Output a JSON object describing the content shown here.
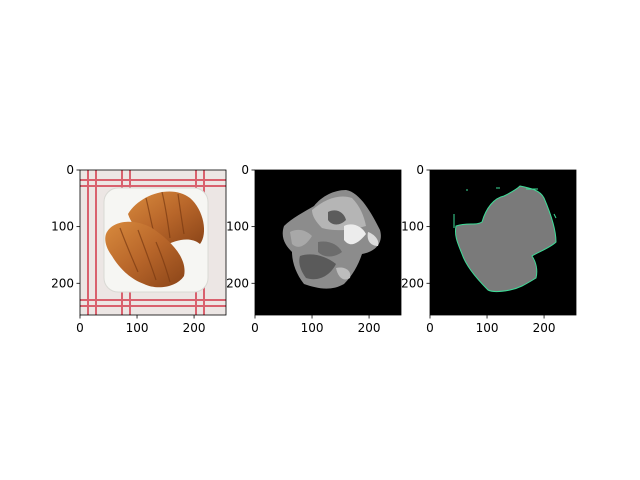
{
  "chart_data": [
    {
      "type": "image",
      "panel": "original-photo",
      "x_ticks": [
        0,
        100,
        200
      ],
      "y_ticks": [
        0,
        100,
        200
      ],
      "xlim": [
        0,
        256
      ],
      "ylim": [
        256,
        0
      ]
    },
    {
      "type": "image",
      "panel": "grayscale-segmentation",
      "x_ticks": [
        0,
        100,
        200
      ],
      "y_ticks": [
        0,
        100,
        200
      ],
      "xlim": [
        0,
        256
      ],
      "ylim": [
        256,
        0
      ]
    },
    {
      "type": "image",
      "panel": "mask-with-green-contour",
      "x_ticks": [
        0,
        100,
        200
      ],
      "y_ticks": [
        0,
        100,
        200
      ],
      "xlim": [
        0,
        256
      ],
      "ylim": [
        256,
        0
      ]
    }
  ],
  "colors": {
    "background": "#000000",
    "mask_gray": "#7a7a7a",
    "contour_green": "#3ddc97",
    "plate": "#f3f3f0",
    "cloth_red": "#d64a5a",
    "croissant": "#b8662a"
  }
}
